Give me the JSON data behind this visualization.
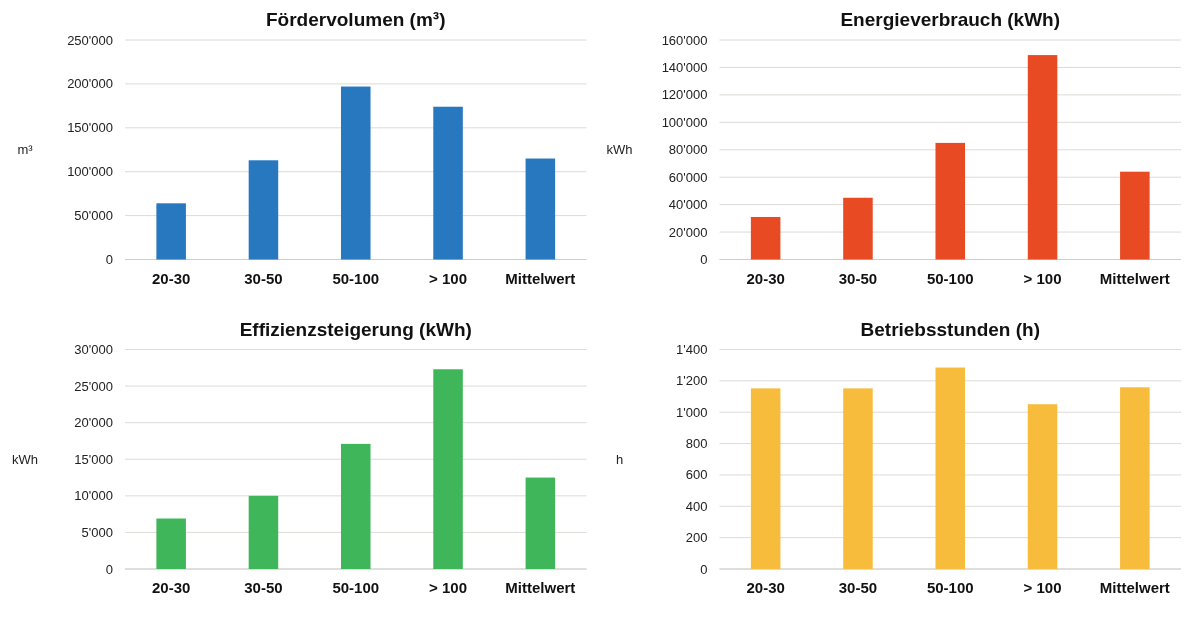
{
  "chart_data": [
    {
      "type": "bar",
      "title": "Fördervolumen (m³)",
      "ylabel": "m³",
      "categories": [
        "20-30",
        "30-50",
        "50-100",
        "> 100",
        "Mittelwert"
      ],
      "values": [
        64000,
        113000,
        197000,
        174000,
        115000
      ],
      "color": "#2878c0",
      "ylim": [
        0,
        250000
      ],
      "yticks": [
        0,
        {
          "value": 50000,
          "label": "50'000"
        },
        {
          "value": 100000,
          "label": "100'000"
        },
        {
          "value": 150000,
          "label": "150'000"
        },
        {
          "value": 200000,
          "label": "200'000"
        },
        {
          "value": 250000,
          "label": "250'000"
        }
      ],
      "grid": "y"
    },
    {
      "type": "bar",
      "title": "Energieverbrauch (kWh)",
      "ylabel": "kWh",
      "categories": [
        "20-30",
        "30-50",
        "50-100",
        "> 100",
        "Mittelwert"
      ],
      "values": [
        31000,
        45000,
        85000,
        149000,
        64000
      ],
      "color": "#e84a24",
      "ylim": [
        0,
        160000
      ],
      "yticks": [
        0,
        {
          "value": 20000,
          "label": "20'000"
        },
        {
          "value": 40000,
          "label": "40'000"
        },
        {
          "value": 60000,
          "label": "60'000"
        },
        {
          "value": 80000,
          "label": "80'000"
        },
        {
          "value": 100000,
          "label": "100'000"
        },
        {
          "value": 120000,
          "label": "120'000"
        },
        {
          "value": 140000,
          "label": "140'000"
        },
        {
          "value": 160000,
          "label": "160'000"
        }
      ],
      "grid": "y"
    },
    {
      "type": "bar",
      "title": "Effizienzsteigerung (kWh)",
      "ylabel": "kWh",
      "categories": [
        "20-30",
        "30-50",
        "50-100",
        "> 100",
        "Mittelwert"
      ],
      "values": [
        6900,
        10000,
        17100,
        27300,
        12500
      ],
      "color": "#3fb65a",
      "ylim": [
        0,
        30000
      ],
      "yticks": [
        0,
        {
          "value": 5000,
          "label": "5'000"
        },
        {
          "value": 10000,
          "label": "10'000"
        },
        {
          "value": 15000,
          "label": "15'000"
        },
        {
          "value": 20000,
          "label": "20'000"
        },
        {
          "value": 25000,
          "label": "25'000"
        },
        {
          "value": 30000,
          "label": "30'000"
        }
      ],
      "grid": "y"
    },
    {
      "type": "bar",
      "title": "Betriebsstunden (h)",
      "ylabel": "h",
      "categories": [
        "20-30",
        "30-50",
        "50-100",
        "> 100",
        "Mittelwert"
      ],
      "values": [
        1152,
        1152,
        1285,
        1051,
        1159
      ],
      "color": "#f8bc3c",
      "ylim": [
        0,
        1400
      ],
      "yticks": [
        0,
        200,
        400,
        600,
        800,
        {
          "value": 1000,
          "label": "1'000"
        },
        {
          "value": 1200,
          "label": "1'200"
        },
        {
          "value": 1400,
          "label": "1'400"
        }
      ],
      "grid": "y"
    }
  ]
}
